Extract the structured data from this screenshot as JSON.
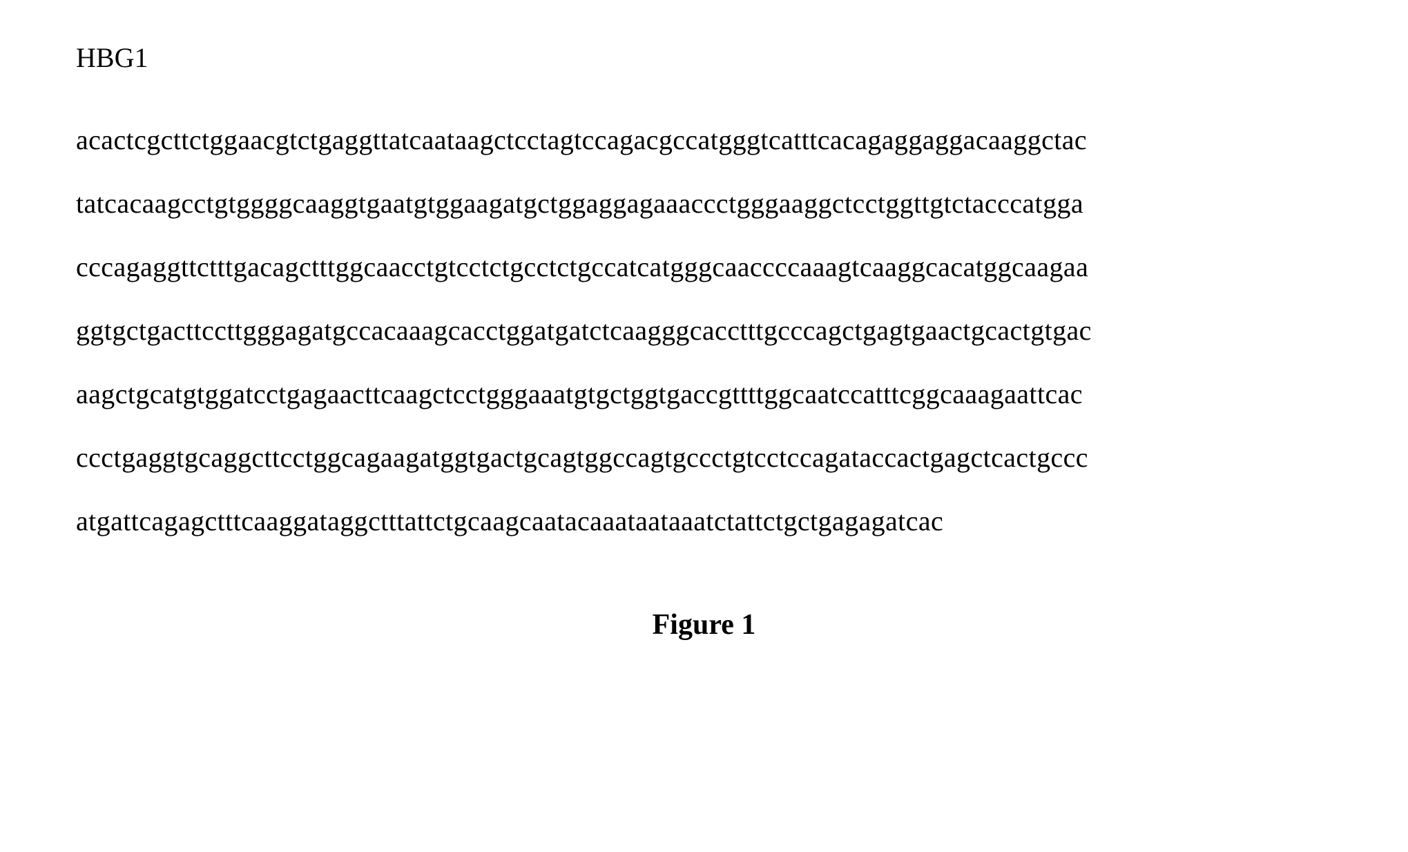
{
  "gene_label": "HBG1",
  "sequence_lines": [
    "acactcgcttctggaacgtctgaggttatcaataagctcctagtccagacgccatgggtcatttcacagaggaggacaaggctac",
    "tatcacaagcctgtggggcaaggtgaatgtggaagatgctggaggagaaaccctgggaaggctcctggttgtctacccatgga",
    "cccagaggttctttgacagctttggcaacctgtcctctgcctctgccatcatgggcaaccccaaagtcaaggcacatggcaagaa",
    "ggtgctgacttccttgggagatgccacaaagcacctggatgatctcaagggcacctttgcccagctgagtgaactgcactgtgac",
    "aagctgcatgtggatcctgagaacttcaagctcctgggaaatgtgctggtgaccgttttggcaatccatttcggcaaagaattcac",
    "ccctgaggtgcaggcttcctggcagaagatggtgactgcagtggccagtgccctgtcctccagataccactgagctcactgccc",
    "atgattcagagctttcaaggataggctttattctgcaagcaatacaaataataaatctattctgctgagagatcac"
  ],
  "figure_caption": "Figure 1",
  "styles": {
    "background_color": "#ffffff",
    "text_color": "#000000",
    "font_family": "Times New Roman",
    "label_fontsize": 40,
    "sequence_fontsize": 40,
    "caption_fontsize": 42,
    "caption_fontweight": "bold",
    "line_height": 2.3
  }
}
